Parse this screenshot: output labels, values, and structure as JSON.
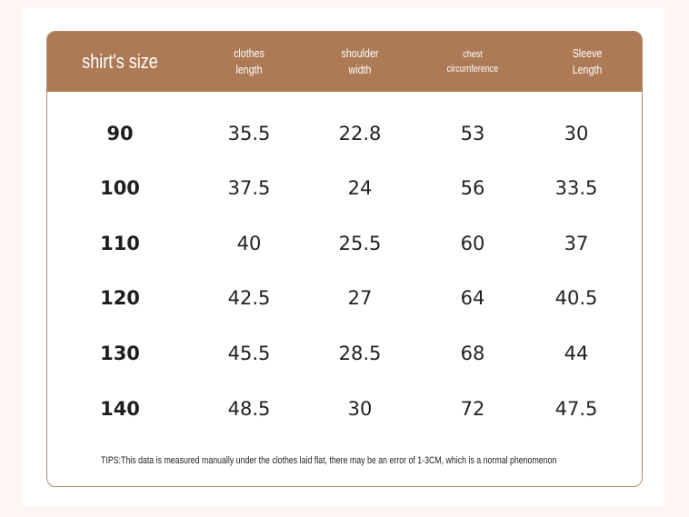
{
  "headers": [
    {
      "lines": [
        "shirt's size"
      ]
    },
    {
      "lines": [
        "clothes",
        "length"
      ]
    },
    {
      "lines": [
        "shoulder",
        "width"
      ]
    },
    {
      "lines": [
        "chest",
        "circumference"
      ]
    },
    {
      "lines": [
        "Sleeve",
        "Length"
      ]
    }
  ],
  "rows": [
    [
      "90",
      "35.5",
      "22.8",
      "53",
      "30"
    ],
    [
      "100",
      "37.5",
      "24",
      "56",
      "33.5"
    ],
    [
      "110",
      "40",
      "25.5",
      "60",
      "37"
    ],
    [
      "120",
      "42.5",
      "27",
      "64",
      "40.5"
    ],
    [
      "130",
      "45.5",
      "28.5",
      "68",
      "44"
    ],
    [
      "140",
      "48.5",
      "30",
      "72",
      "47.5"
    ]
  ],
  "tips": "TIPS:This data is measured manually under the clothes laid flat, there may be an error of 1-3CM, which is a normal phenomenon",
  "colors": {
    "header_bg": "#ad7a56",
    "border": "#b5886a",
    "page_bg": "#fdf6f3"
  }
}
